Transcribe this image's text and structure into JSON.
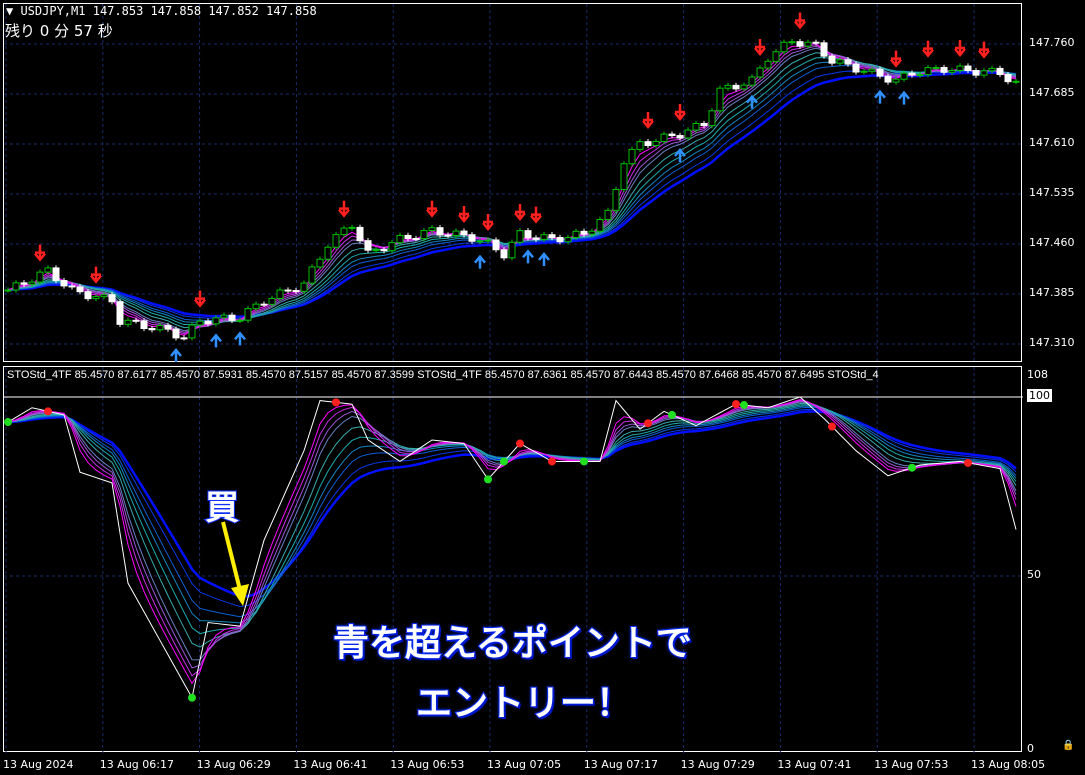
{
  "header": {
    "symbol": "USDJPY,M1",
    "ohlc": "147.853 147.858 147.852 147.858",
    "remaining": "残り 0 分 57 秒"
  },
  "stoch_header": "STOStd_4TF 85.4570 87.6177 85.4570 87.5931 85.4570 87.5157 85.4570 87.3599  STOStd_4TF 85.4570 87.6361 85.4570 87.6443 85.4570 87.6468 85.4570 87.6495  STOStd_4",
  "annotations": {
    "buy": "買",
    "line1": "青を超えるポイントで",
    "line2": "エントリー！"
  },
  "colors": {
    "bull": "#00c000",
    "bear": "#ffffff",
    "sell_arrow": "#ff2020",
    "buy_arrow": "#3090ff",
    "ribbon_fast": "#ff00ff",
    "ribbon_mid": "#20c0a0",
    "ribbon_slow": "#0010ff",
    "grid": "#1a2a6a",
    "arrow_annot": "#ffee00"
  },
  "chart_data": [
    {
      "type": "candlestick",
      "title": "USDJPY,M1",
      "yticks": [
        "147.760",
        "147.685",
        "147.610",
        "147.535",
        "147.460",
        "147.385",
        "147.310"
      ],
      "ylim": [
        147.28,
        147.8
      ],
      "xticks": [
        "13 Aug 2024",
        "13 Aug 06:17",
        "13 Aug 06:29",
        "13 Aug 06:41",
        "13 Aug 06:53",
        "13 Aug 07:05",
        "13 Aug 07:17",
        "13 Aug 07:29",
        "13 Aug 07:41",
        "13 Aug 07:53",
        "13 Aug 08:05"
      ],
      "close_path": [
        [
          "06:06",
          147.39
        ],
        [
          "06:11",
          147.42
        ],
        [
          "06:14",
          147.39
        ],
        [
          "06:19",
          147.375
        ],
        [
          "06:20",
          147.345
        ],
        [
          "06:26",
          147.33
        ],
        [
          "06:28",
          147.32
        ],
        [
          "06:30",
          147.345
        ],
        [
          "06:35",
          147.35
        ],
        [
          "06:38",
          147.375
        ],
        [
          "06:43",
          147.4
        ],
        [
          "06:46",
          147.46
        ],
        [
          "06:49",
          147.49
        ],
        [
          "06:51",
          147.445
        ],
        [
          "06:55",
          147.467
        ],
        [
          "06:59",
          147.48
        ],
        [
          "07:04",
          147.47
        ],
        [
          "07:06",
          147.46
        ],
        [
          "07:08",
          147.445
        ],
        [
          "07:10",
          147.475
        ],
        [
          "07:14",
          147.467
        ],
        [
          "07:18",
          147.475
        ],
        [
          "07:21",
          147.505
        ],
        [
          "07:23",
          147.585
        ],
        [
          "07:25",
          147.61
        ],
        [
          "07:30",
          147.625
        ],
        [
          "07:33",
          147.64
        ],
        [
          "07:35",
          147.69
        ],
        [
          "07:39",
          147.705
        ],
        [
          "07:41",
          147.74
        ],
        [
          "07:44",
          147.765
        ],
        [
          "07:47",
          147.757
        ],
        [
          "07:49",
          147.735
        ],
        [
          "07:53",
          147.72
        ],
        [
          "07:57",
          147.705
        ],
        [
          "07:59",
          147.717
        ],
        [
          "08:03",
          147.723
        ],
        [
          "08:06",
          147.72
        ],
        [
          "08:10",
          147.717
        ],
        [
          "08:12",
          147.7
        ]
      ],
      "sell_signals": [
        "06:10",
        "06:17",
        "06:30",
        "06:48",
        "06:59",
        "07:03",
        "07:06",
        "07:10",
        "07:12",
        "07:26",
        "07:30",
        "07:40",
        "07:45",
        "07:57",
        "08:01",
        "08:05",
        "08:08"
      ],
      "buy_signals": [
        "06:27",
        "06:32",
        "06:35",
        "07:05",
        "07:11",
        "07:13",
        "07:30",
        "07:39",
        "07:55",
        "07:58"
      ]
    },
    {
      "type": "line",
      "title": "STOStd_4TF",
      "yticks": [
        "108",
        "100",
        "50",
        "0"
      ],
      "ylim": [
        0,
        100
      ],
      "main_path": [
        [
          "06:06",
          93
        ],
        [
          "06:09",
          97
        ],
        [
          "06:13",
          95
        ],
        [
          "06:15",
          79
        ],
        [
          "06:19",
          76
        ],
        [
          "06:21",
          48
        ],
        [
          "06:25",
          32
        ],
        [
          "06:29",
          16
        ],
        [
          "06:31",
          37
        ],
        [
          "06:35",
          36
        ],
        [
          "06:38",
          60
        ],
        [
          "06:43",
          85
        ],
        [
          "06:45",
          99
        ],
        [
          "06:49",
          98
        ],
        [
          "06:51",
          88
        ],
        [
          "06:55",
          82
        ],
        [
          "06:59",
          88
        ],
        [
          "07:03",
          87
        ],
        [
          "07:06",
          77
        ],
        [
          "07:10",
          87
        ],
        [
          "07:14",
          82
        ],
        [
          "07:20",
          82
        ],
        [
          "07:22",
          99
        ],
        [
          "07:25",
          91
        ],
        [
          "07:28",
          96
        ],
        [
          "07:32",
          92
        ],
        [
          "07:37",
          98
        ],
        [
          "07:41",
          97
        ],
        [
          "07:45",
          100
        ],
        [
          "07:48",
          94
        ],
        [
          "07:52",
          85
        ],
        [
          "07:56",
          78
        ],
        [
          "08:00",
          81
        ],
        [
          "08:05",
          82
        ],
        [
          "08:10",
          80
        ],
        [
          "08:12",
          63
        ]
      ],
      "red_dots": [
        "06:11",
        "06:47",
        "07:10",
        "07:14",
        "07:26",
        "07:37",
        "07:49",
        "08:06"
      ],
      "green_dots": [
        "06:06",
        "06:29",
        "07:06",
        "07:08",
        "07:18",
        "07:29",
        "07:38",
        "07:59"
      ]
    }
  ]
}
